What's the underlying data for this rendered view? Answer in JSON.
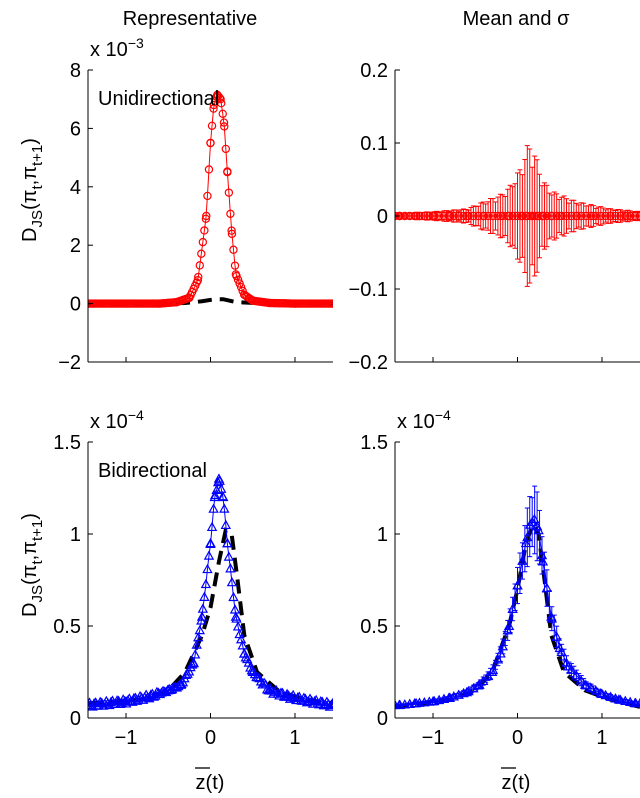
{
  "figure": {
    "col_titles": [
      "Representative",
      "Mean and σ"
    ],
    "xlabel": "z(t)",
    "ylabel_main": "D",
    "ylabel_sub": "JS",
    "ylabel_args": "(π",
    "ylabel_t": "t",
    "ylabel_mid": ",π",
    "ylabel_t1": "t+1",
    "ylabel_end": ")"
  },
  "chart_data": [
    {
      "type": "line",
      "panel": "top-left",
      "title": "Representative",
      "annotation": "Unidirectional",
      "exponent_label": "x 10",
      "exponent_power": "−3",
      "xlim": [
        -1.45,
        1.45
      ],
      "ylim": [
        -2,
        8
      ],
      "xticks": [
        -1,
        0,
        1
      ],
      "yticks": [
        -2,
        0,
        2,
        4,
        6,
        8
      ],
      "ytick_labels": [
        "−2",
        "0",
        "2",
        "4",
        "6",
        "8"
      ],
      "series": [
        {
          "style": "dashed",
          "color": "#000000",
          "x": [
            -1.45,
            -0.6,
            -0.3,
            -0.1,
            0.05,
            0.15,
            0.3,
            0.6,
            1.45
          ],
          "y": [
            0,
            0,
            0.02,
            0.08,
            0.15,
            0.15,
            0.05,
            0.01,
            0
          ]
        },
        {
          "marker": "circle",
          "color": "#ff0000",
          "x": [
            -1.45,
            -0.6,
            -0.4,
            -0.25,
            -0.15,
            -0.05,
            0,
            0.04,
            0.08,
            0.12,
            0.16,
            0.2,
            0.25,
            0.3,
            0.4,
            0.5,
            0.7,
            1.0,
            1.45
          ],
          "y": [
            0,
            0,
            0.05,
            0.2,
            0.8,
            3.0,
            5.5,
            6.8,
            7.15,
            7.0,
            6.2,
            4.5,
            2.5,
            1.0,
            0.3,
            0.1,
            0.02,
            0,
            0
          ]
        }
      ]
    },
    {
      "type": "line",
      "panel": "top-right",
      "title": "Mean and σ",
      "xlim": [
        -1.45,
        1.45
      ],
      "ylim": [
        -0.2,
        0.2
      ],
      "xticks": [
        -1,
        0,
        1
      ],
      "yticks": [
        -0.2,
        -0.1,
        0,
        0.1,
        0.2
      ],
      "ytick_labels": [
        "−0.2",
        "−0.1",
        "0",
        "0.1",
        "0.2"
      ],
      "series": [
        {
          "marker": "circle",
          "color": "#ff0000",
          "errorbars": true,
          "x": [
            -1.4,
            -1.2,
            -1.0,
            -0.8,
            -0.6,
            -0.4,
            -0.2,
            -0.1,
            0,
            0.05,
            0.1,
            0.15,
            0.2,
            0.25,
            0.3,
            0.4,
            0.5,
            0.7,
            0.9,
            1.1,
            1.3,
            1.45
          ],
          "y": [
            0,
            0,
            0,
            0,
            0,
            0,
            0,
            0,
            0,
            0,
            0,
            0,
            0,
            0,
            0,
            0,
            0,
            0,
            0,
            0,
            0,
            0
          ],
          "err": [
            0.003,
            0.005,
            0.006,
            0.008,
            0.01,
            0.02,
            0.03,
            0.04,
            0.06,
            0.07,
            0.095,
            0.1,
            0.09,
            0.07,
            0.05,
            0.035,
            0.03,
            0.02,
            0.015,
            0.01,
            0.008,
            0.006
          ]
        }
      ]
    },
    {
      "type": "line",
      "panel": "bottom-left",
      "annotation": "Bidirectional",
      "exponent_label": "x 10",
      "exponent_power": "−4",
      "xlim": [
        -1.45,
        1.45
      ],
      "ylim": [
        0,
        1.5
      ],
      "xticks": [
        -1,
        0,
        1
      ],
      "xtick_labels": [
        "−1",
        "0",
        "1"
      ],
      "yticks": [
        0,
        0.5,
        1,
        1.5
      ],
      "ytick_labels": [
        "0",
        "0.5",
        "1",
        "1.5"
      ],
      "series": [
        {
          "style": "dashed",
          "color": "#000000",
          "x": [
            -1.45,
            -0.8,
            -0.5,
            -0.3,
            -0.1,
            0,
            0.1,
            0.18,
            0.25,
            0.32,
            0.4,
            0.55,
            0.8,
            1.1,
            1.45
          ],
          "y": [
            0.08,
            0.1,
            0.15,
            0.25,
            0.45,
            0.6,
            0.85,
            1.02,
            1.0,
            0.75,
            0.45,
            0.25,
            0.15,
            0.1,
            0.08
          ]
        },
        {
          "marker": "triangle",
          "color": "#0000ff",
          "x": [
            -1.45,
            -1.0,
            -0.7,
            -0.5,
            -0.35,
            -0.2,
            -0.1,
            0,
            0.05,
            0.1,
            0.15,
            0.2,
            0.3,
            0.4,
            0.5,
            0.7,
            0.9,
            1.2,
            1.45
          ],
          "y": [
            0.07,
            0.09,
            0.12,
            0.15,
            0.18,
            0.3,
            0.55,
            0.95,
            1.2,
            1.3,
            1.2,
            0.95,
            0.55,
            0.35,
            0.25,
            0.15,
            0.12,
            0.09,
            0.07
          ]
        }
      ]
    },
    {
      "type": "line",
      "panel": "bottom-right",
      "exponent_label": "x 10",
      "exponent_power": "−4",
      "xlim": [
        -1.45,
        1.45
      ],
      "ylim": [
        0,
        1.5
      ],
      "xticks": [
        -1,
        0,
        1
      ],
      "xtick_labels": [
        "−1",
        "0",
        "1"
      ],
      "yticks": [
        0,
        0.5,
        1,
        1.5
      ],
      "ytick_labels": [
        "0",
        "0.5",
        "1",
        "1.5"
      ],
      "series": [
        {
          "style": "dashed",
          "color": "#000000",
          "x": [
            -1.45,
            -0.8,
            -0.5,
            -0.3,
            -0.1,
            0,
            0.1,
            0.18,
            0.25,
            0.32,
            0.4,
            0.55,
            0.8,
            1.1,
            1.45
          ],
          "y": [
            0.06,
            0.1,
            0.15,
            0.25,
            0.5,
            0.7,
            0.95,
            1.05,
            1.0,
            0.75,
            0.45,
            0.25,
            0.15,
            0.1,
            0.06
          ]
        },
        {
          "marker": "triangle",
          "color": "#0000ff",
          "errorbars": true,
          "x": [
            -1.4,
            -1.2,
            -1.0,
            -0.8,
            -0.6,
            -0.45,
            -0.3,
            -0.2,
            -0.1,
            0,
            0.1,
            0.15,
            0.2,
            0.25,
            0.3,
            0.4,
            0.5,
            0.6,
            0.8,
            1.0,
            1.2,
            1.4
          ],
          "y": [
            0.07,
            0.08,
            0.09,
            0.11,
            0.14,
            0.18,
            0.25,
            0.35,
            0.5,
            0.72,
            0.95,
            1.05,
            1.08,
            1.02,
            0.85,
            0.55,
            0.38,
            0.28,
            0.18,
            0.13,
            0.1,
            0.08
          ],
          "err": [
            0.005,
            0.006,
            0.008,
            0.01,
            0.015,
            0.02,
            0.03,
            0.04,
            0.06,
            0.1,
            0.15,
            0.18,
            0.2,
            0.18,
            0.12,
            0.08,
            0.05,
            0.04,
            0.025,
            0.015,
            0.01,
            0.008
          ]
        }
      ]
    }
  ]
}
